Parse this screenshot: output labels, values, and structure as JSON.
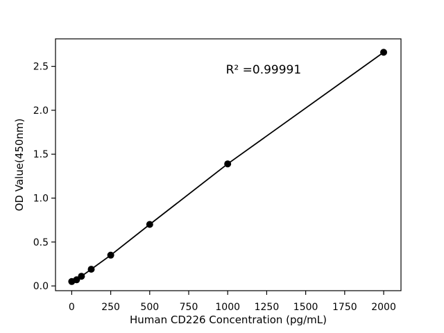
{
  "figure": {
    "background": "#ffffff",
    "plot_background": "#ffffff",
    "axis_color": "#000000",
    "text_color": "#000000"
  },
  "chart_data": {
    "type": "scatter",
    "title": "",
    "xlabel": "Human CD226 Concentration (pg/mL)",
    "ylabel": "OD Value(450nm)",
    "xlim": [
      -104,
      2111
    ],
    "ylim": [
      -0.054,
      2.813
    ],
    "grid": false,
    "legend_position": "none",
    "marker_color": "#000000",
    "line_color": "#000000",
    "x_ticks": [
      {
        "value": 0,
        "label": "0"
      },
      {
        "value": 250,
        "label": "250"
      },
      {
        "value": 500,
        "label": "500"
      },
      {
        "value": 750,
        "label": "750"
      },
      {
        "value": 1000,
        "label": "1000"
      },
      {
        "value": 1250,
        "label": "1250"
      },
      {
        "value": 1500,
        "label": "1500"
      },
      {
        "value": 1750,
        "label": "1750"
      },
      {
        "value": 2000,
        "label": "2000"
      }
    ],
    "y_ticks": [
      {
        "value": 0.0,
        "label": "0.0"
      },
      {
        "value": 0.5,
        "label": "0.5"
      },
      {
        "value": 1.0,
        "label": "1.0"
      },
      {
        "value": 1.5,
        "label": "1.5"
      },
      {
        "value": 2.0,
        "label": "2.0"
      },
      {
        "value": 2.5,
        "label": "2.5"
      }
    ],
    "points": [
      {
        "x": 0,
        "y": 0.05
      },
      {
        "x": 31.25,
        "y": 0.07
      },
      {
        "x": 62.5,
        "y": 0.11
      },
      {
        "x": 125,
        "y": 0.19
      },
      {
        "x": 250,
        "y": 0.35
      },
      {
        "x": 500,
        "y": 0.7
      },
      {
        "x": 1000,
        "y": 1.39
      },
      {
        "x": 2000,
        "y": 2.66
      }
    ],
    "annotation": {
      "text": "R² =0.99991",
      "x": 1230,
      "y": 2.465
    }
  }
}
